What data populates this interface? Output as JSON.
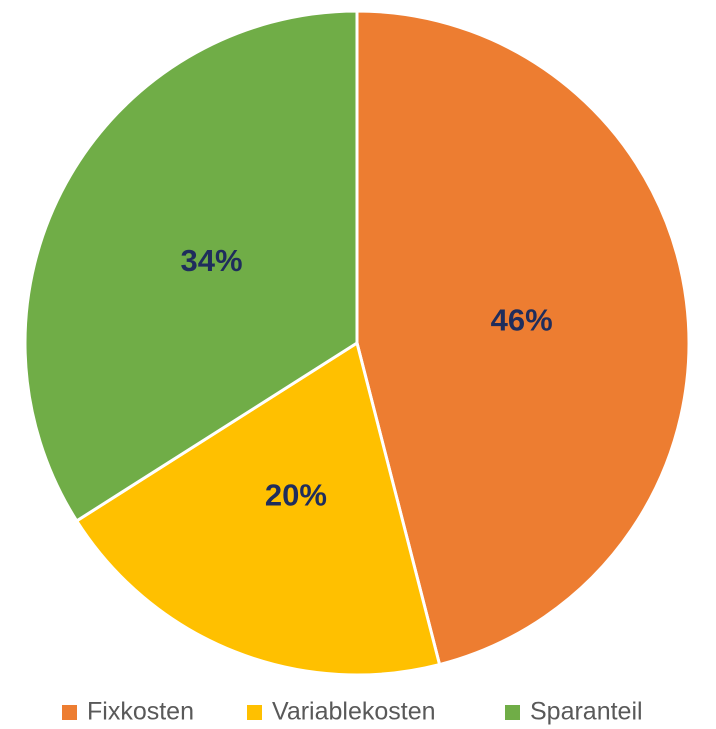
{
  "chart_data": {
    "type": "pie",
    "categories": [
      "Fixkosten",
      "Variablekosten",
      "Sparanteil"
    ],
    "values": [
      46,
      20,
      34
    ],
    "value_labels": [
      "46%",
      "20%",
      "34%"
    ],
    "colors": [
      "#ed7d31",
      "#ffc000",
      "#70ad47"
    ],
    "legend": "bottom"
  }
}
